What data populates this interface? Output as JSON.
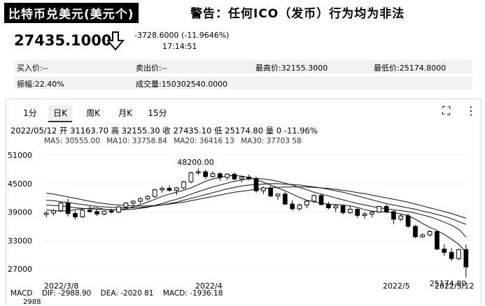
{
  "header": {
    "title": "比特币兑美元(美元个)",
    "warning": "警告：任何ICO（发币）行为均为非法"
  },
  "quote": {
    "price": "27435.1000",
    "change": "-3728.6000 (-11.9646%)",
    "time": "17:14:51"
  },
  "stats": {
    "buy": "买入价:--",
    "sell": "卖出价:--",
    "high": "最高价:32155.3000",
    "low": "最低价:25174.8000",
    "amplitude": "振幅:22.40%",
    "volume": "成交量:150302540.0000"
  },
  "tabs": [
    {
      "label": "1分",
      "active": false
    },
    {
      "label": "日K",
      "active": true
    },
    {
      "label": "周K",
      "active": false
    },
    {
      "label": "月K",
      "active": false
    },
    {
      "label": "15分",
      "active": false
    }
  ],
  "controls": {
    "fullscreen_icon": "fullscreen-icon",
    "more_icon": "more-vertical-icon",
    "fullscreen": "⛶",
    "more": "⋮"
  },
  "chart_info": {
    "summary": "2022/05/12 开 31163.70 高 32155.30 收 27435.10 低 25174.80 量 0 -11.96%",
    "ma5": "MA5: 30555.00",
    "ma10": "MA10: 33758.84",
    "ma20": "MA20: 36416 13",
    "ma30": "MA30: 37703 58"
  },
  "macd": {
    "label": "MACD",
    "dif": "DIF: -2988.90",
    "dea": "DEA: -2020 81",
    "value": "MACD: -1936.18",
    "axis_value": "2988"
  },
  "chart_data": {
    "type": "candlestick",
    "y_ticks": [
      "51000",
      "45000",
      "39000",
      "33000",
      "27000"
    ],
    "ylim": [
      24500,
      52500
    ],
    "x_labels": [
      "2022/3/8",
      "2022/4",
      "2022/5",
      "2022/5/12"
    ],
    "annotations": {
      "max": "48200.00",
      "min": "25174.80"
    },
    "candles": [
      [
        38500,
        39200,
        37900,
        38800
      ],
      [
        38800,
        39600,
        38300,
        39300
      ],
      [
        39300,
        41200,
        39000,
        40900
      ],
      [
        40900,
        41800,
        38100,
        38700
      ],
      [
        38700,
        39300,
        37400,
        38000
      ],
      [
        38000,
        39800,
        37800,
        39400
      ],
      [
        39400,
        40300,
        38900,
        39100
      ],
      [
        39100,
        39600,
        38200,
        38600
      ],
      [
        38600,
        39400,
        38300,
        39200
      ],
      [
        39200,
        39700,
        38700,
        39000
      ],
      [
        39000,
        40300,
        38800,
        40100
      ],
      [
        40100,
        41100,
        39800,
        40900
      ],
      [
        40900,
        41500,
        40300,
        41300
      ],
      [
        41300,
        42100,
        40800,
        41800
      ],
      [
        41800,
        42600,
        41400,
        42300
      ],
      [
        42300,
        43900,
        42000,
        43700
      ],
      [
        43700,
        44400,
        43100,
        44000
      ],
      [
        44000,
        44600,
        43300,
        43600
      ],
      [
        43600,
        44300,
        42600,
        44100
      ],
      [
        44100,
        45600,
        43800,
        45400
      ],
      [
        45400,
        47500,
        45100,
        47300
      ],
      [
        47300,
        48200,
        46800,
        47500
      ],
      [
        47500,
        47900,
        46000,
        46500
      ],
      [
        46500,
        47600,
        46300,
        47100
      ],
      [
        47100,
        47400,
        45600,
        46300
      ],
      [
        46300,
        47200,
        45800,
        47000
      ],
      [
        47000,
        47300,
        45700,
        46000
      ],
      [
        46000,
        46600,
        45300,
        46400
      ],
      [
        46400,
        46900,
        45700,
        46100
      ],
      [
        46100,
        46500,
        43100,
        43500
      ],
      [
        43500,
        44400,
        42800,
        44100
      ],
      [
        44100,
        44500,
        42200,
        42400
      ],
      [
        42400,
        43000,
        41600,
        42800
      ],
      [
        42800,
        43300,
        40500,
        40700
      ],
      [
        40700,
        41500,
        39300,
        39700
      ],
      [
        39700,
        40800,
        39300,
        40500
      ],
      [
        40500,
        41500,
        39800,
        41300
      ],
      [
        41300,
        42700,
        40900,
        42500
      ],
      [
        42500,
        42800,
        40400,
        40600
      ],
      [
        40600,
        41200,
        39600,
        39900
      ],
      [
        39900,
        40700,
        39000,
        40300
      ],
      [
        40300,
        40600,
        38500,
        38900
      ],
      [
        38900,
        40300,
        38600,
        39600
      ],
      [
        39600,
        39900,
        37800,
        38300
      ],
      [
        38300,
        39000,
        37600,
        38600
      ],
      [
        38600,
        39300,
        37900,
        39000
      ],
      [
        39000,
        40300,
        38800,
        40200
      ],
      [
        40200,
        40600,
        38800,
        39100
      ],
      [
        39100,
        39400,
        36500,
        37500
      ],
      [
        37500,
        38600,
        37100,
        38200
      ],
      [
        38200,
        38700,
        35700,
        36000
      ],
      [
        36000,
        36300,
        33500,
        33800
      ],
      [
        33800,
        34500,
        33600,
        34200
      ],
      [
        34200,
        35200,
        33800,
        34900
      ],
      [
        34900,
        35100,
        31000,
        31200
      ],
      [
        31200,
        32200,
        29800,
        30500
      ],
      [
        30500,
        31400,
        28700,
        29200
      ],
      [
        29200,
        31300,
        28900,
        31100
      ],
      [
        31100,
        32155,
        25174,
        27435
      ]
    ],
    "ma": [
      {
        "name": "MA5",
        "values": [
          39500,
          39300,
          39200,
          39300,
          39500,
          39700,
          39800,
          39900,
          39600,
          39400,
          39500,
          39700,
          40100,
          40600,
          41100,
          41700,
          42300,
          42800,
          43200,
          43600,
          44100,
          44800,
          45500,
          46000,
          46300,
          46700,
          46700,
          46600,
          46300,
          45900,
          45300,
          44700,
          44100,
          43500,
          42800,
          42100,
          41500,
          41200,
          40900,
          40700,
          40600,
          40500,
          40300,
          40000,
          39500,
          39200,
          39100,
          39000,
          38900,
          38600,
          38300,
          37500,
          36600,
          35800,
          35100,
          34300,
          33300,
          32200,
          30555
        ]
      },
      {
        "name": "MA10",
        "values": [
          40500,
          40400,
          40300,
          40100,
          39900,
          39800,
          39700,
          39600,
          39600,
          39500,
          39500,
          39500,
          39600,
          39800,
          40000,
          40400,
          40800,
          41300,
          41700,
          42200,
          42800,
          43300,
          43800,
          44300,
          44700,
          45100,
          45500,
          45800,
          46000,
          46100,
          46000,
          45800,
          45500,
          45100,
          44700,
          44200,
          43700,
          43200,
          42800,
          42400,
          42000,
          41600,
          41200,
          40800,
          40500,
          40200,
          39900,
          39700,
          39500,
          39300,
          39100,
          38800,
          38400,
          38000,
          37500,
          36900,
          36200,
          35400,
          33758
        ]
      },
      {
        "name": "MA20",
        "values": [
          41500,
          41400,
          41200,
          41000,
          40800,
          40600,
          40400,
          40200,
          40100,
          40000,
          39900,
          39900,
          39900,
          40000,
          40100,
          40300,
          40500,
          40800,
          41100,
          41500,
          41900,
          42300,
          42700,
          43100,
          43500,
          43900,
          44200,
          44500,
          44700,
          44800,
          44900,
          45000,
          45000,
          44900,
          44800,
          44700,
          44500,
          44300,
          44100,
          43800,
          43500,
          43200,
          42800,
          42400,
          42000,
          41600,
          41200,
          40800,
          40500,
          40200,
          39900,
          39600,
          39200,
          38900,
          38500,
          38100,
          37600,
          37000,
          36416
        ]
      },
      {
        "name": "MA30",
        "values": [
          43000,
          42800,
          42500,
          42200,
          41900,
          41600,
          41300,
          41000,
          40800,
          40600,
          40500,
          40400,
          40300,
          40300,
          40300,
          40400,
          40500,
          40700,
          40900,
          41100,
          41400,
          41700,
          42000,
          42300,
          42600,
          42900,
          43200,
          43400,
          43600,
          43800,
          44000,
          44100,
          44200,
          44300,
          44300,
          44300,
          44300,
          44200,
          44100,
          44000,
          43800,
          43600,
          43400,
          43100,
          42900,
          42600,
          42300,
          42000,
          41700,
          41400,
          41100,
          40700,
          40300,
          39900,
          39500,
          39100,
          38700,
          38200,
          37703
        ]
      }
    ]
  }
}
